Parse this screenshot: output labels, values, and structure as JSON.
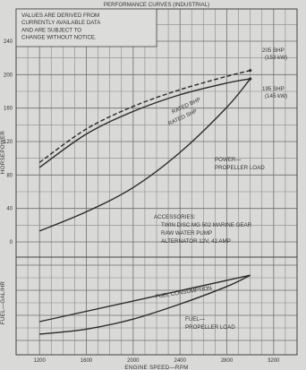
{
  "chart_data": {
    "type": "line",
    "title": "PERFORMANCE CURVES (INDUSTRIAL)",
    "notice": [
      "VALUES ARE DERIVED FROM",
      "CURRENTLY AVAILABLE DATA",
      "AND ARE SUBJECT TO",
      "CHANGE WITHOUT NOTICE."
    ],
    "xlabel": "ENGINE SPEED—RPM",
    "ylabel_top": "HORSEPOWER",
    "ylabel_bottom": "FUEL—GAL/HR",
    "x_ticks": [
      1200,
      1600,
      2000,
      2400,
      2800,
      3200
    ],
    "y_ticks": [
      0,
      40,
      80,
      120,
      160,
      200,
      240
    ],
    "xlim": [
      1000,
      3400
    ],
    "ylim": [
      0,
      250
    ],
    "grid": true,
    "series": [
      {
        "name": "RATED BHP",
        "x": [
          1200,
          1600,
          2000,
          2400,
          2800,
          3000
        ],
        "values": [
          95,
          135,
          162,
          182,
          198,
          205
        ],
        "style": "dashed"
      },
      {
        "name": "RATED SHP",
        "x": [
          1200,
          1600,
          2000,
          2400,
          2800,
          3000
        ],
        "values": [
          89,
          129,
          156,
          176,
          190,
          195
        ],
        "style": "solid"
      },
      {
        "name": "POWER—PROPELLER LOAD",
        "x": [
          1200,
          1600,
          2000,
          2400,
          2800,
          3000
        ],
        "values": [
          13,
          36,
          65,
          107,
          161,
          195
        ],
        "style": "solid"
      },
      {
        "name": "FUEL CONSUMPTION",
        "x": [
          1200,
          3000
        ],
        "values": [
          0.75,
          2.6
        ],
        "style": "solid",
        "axis": "fuel"
      },
      {
        "name": "FUEL—PROPELLER LOAD",
        "x": [
          1200,
          1600,
          2000,
          2400,
          2800,
          3000
        ],
        "values": [
          0.25,
          0.45,
          0.85,
          1.45,
          2.15,
          2.6
        ],
        "style": "solid",
        "axis": "fuel"
      }
    ],
    "labels": {
      "bhp_end": [
        "205 BHP",
        "(153 kW)"
      ],
      "shp_end": [
        "195 SHP",
        "(145 kW)"
      ],
      "rated_bhp": "RATED BHP",
      "rated_shp": "RATED SHP",
      "power_prop": [
        "POWER—",
        "PROPELLER LOAD"
      ],
      "fuel_cons": "FUEL CONSUMPTION",
      "fuel_prop": [
        "FUEL—",
        "PROPELLER LOAD"
      ],
      "accessories": [
        "ACCESSORIES:",
        "TWIN DISC MG 502 MARINE GEAR",
        "RAW WATER PUMP",
        "ALTERNATOR 12V, 42 AMP"
      ]
    }
  }
}
